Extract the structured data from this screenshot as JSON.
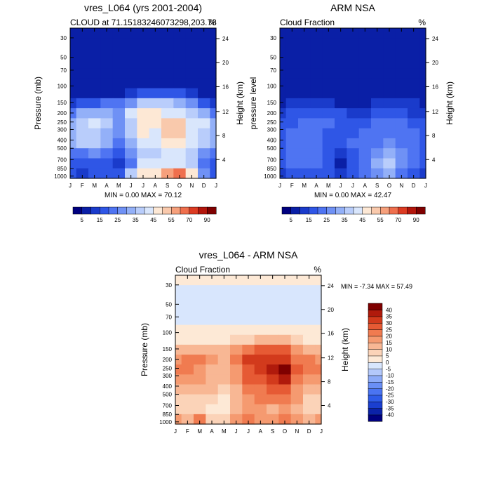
{
  "chart_data": [
    {
      "type": "heatmap",
      "title": "vres_L064 (yrs 2001-2004)",
      "subtitle_left": "CLOUD at 71.15183246073298,203.78",
      "subtitle_right": "%",
      "xlabel": "",
      "ylabel": "Pressure (mb)",
      "ylabel_right": "Height (km)",
      "x_ticks": [
        "J",
        "F",
        "M",
        "A",
        "M",
        "J",
        "J",
        "A",
        "S",
        "O",
        "N",
        "D",
        "J"
      ],
      "y_ticks_left": [
        "30",
        "50",
        "70",
        "100",
        "150",
        "200",
        "250",
        "300",
        "400",
        "500",
        "700",
        "850",
        "1000"
      ],
      "y_ticks_right": [
        "24",
        "20",
        "16",
        "12",
        "8",
        "4"
      ],
      "stats": "MIN =   0.00 MAX =  70.12",
      "colorbar": {
        "orientation": "horizontal",
        "labels": [
          "5",
          "15",
          "25",
          "35",
          "45",
          "55",
          "70",
          "90"
        ],
        "levels": [
          5,
          10,
          15,
          20,
          25,
          30,
          35,
          40,
          45,
          50,
          55,
          60,
          70,
          80,
          90
        ],
        "colors": [
          "#00007f",
          "#0a1fa6",
          "#1a3bcb",
          "#2f56e6",
          "#4f74f2",
          "#6f91f5",
          "#93b0f8",
          "#b9cdfb",
          "#d9e6fc",
          "#fde8d5",
          "#f9c9ac",
          "#f6a07c",
          "#ef6f4d",
          "#dc3b22",
          "#b3160c",
          "#7f0000"
        ]
      },
      "grid_rows": [
        [
          1,
          1,
          1,
          1,
          1,
          1,
          1,
          1,
          1,
          1,
          1,
          1,
          1
        ],
        [
          1,
          1,
          1,
          1,
          1,
          1,
          1,
          1,
          1,
          1,
          1,
          1,
          1
        ],
        [
          1,
          1,
          1,
          1,
          1,
          1,
          1,
          1,
          1,
          1,
          1,
          1,
          1
        ],
        [
          1,
          1,
          1,
          1,
          1,
          1,
          1,
          1,
          1,
          1,
          1,
          1,
          1
        ],
        [
          1,
          1,
          1,
          1,
          1,
          1,
          1,
          1,
          1,
          1,
          1,
          1,
          1
        ],
        [
          1,
          1,
          1,
          1,
          1,
          1,
          1,
          1,
          1,
          1,
          1,
          1,
          1
        ],
        [
          1,
          1,
          1,
          1,
          1,
          2,
          3,
          3,
          3,
          3,
          2,
          1,
          1
        ],
        [
          2,
          3,
          3,
          4,
          4,
          5,
          7,
          7,
          7,
          6,
          5,
          3,
          2
        ],
        [
          4,
          6,
          6,
          6,
          5,
          8,
          9,
          9,
          8,
          8,
          7,
          6,
          4
        ],
        [
          6,
          7,
          8,
          7,
          5,
          7,
          9,
          9,
          10,
          10,
          8,
          8,
          6
        ],
        [
          6,
          7,
          7,
          6,
          5,
          7,
          9,
          8,
          10,
          10,
          8,
          7,
          6
        ],
        [
          6,
          7,
          7,
          6,
          4,
          6,
          8,
          8,
          9,
          9,
          8,
          7,
          6
        ],
        [
          4,
          4,
          5,
          4,
          3,
          5,
          7,
          7,
          8,
          8,
          7,
          5,
          4
        ],
        [
          3,
          3,
          3,
          3,
          2,
          4,
          8,
          8,
          8,
          8,
          7,
          4,
          3
        ],
        [
          3,
          2,
          3,
          3,
          3,
          7,
          9,
          9,
          11,
          12,
          9,
          5,
          3
        ]
      ]
    },
    {
      "type": "heatmap",
      "title": "ARM NSA",
      "subtitle_left": "Cloud Fraction",
      "subtitle_right": "%",
      "xlabel": "",
      "ylabel": "pressure level",
      "ylabel_right": "Height (km)",
      "x_ticks": [
        "J",
        "F",
        "M",
        "A",
        "M",
        "J",
        "J",
        "A",
        "S",
        "O",
        "N",
        "D",
        "J"
      ],
      "y_ticks_left": [
        "30",
        "50",
        "70",
        "100",
        "150",
        "200",
        "250",
        "300",
        "400",
        "500",
        "700",
        "850",
        "1000"
      ],
      "y_ticks_right": [
        "24",
        "20",
        "16",
        "12",
        "8",
        "4"
      ],
      "stats": "MIN =   0.00 MAX =  42.47",
      "colorbar": {
        "orientation": "horizontal",
        "labels": [
          "5",
          "15",
          "25",
          "35",
          "45",
          "55",
          "70",
          "90"
        ],
        "levels": [
          5,
          10,
          15,
          20,
          25,
          30,
          35,
          40,
          45,
          50,
          55,
          60,
          70,
          80,
          90
        ],
        "colors": [
          "#00007f",
          "#0a1fa6",
          "#1a3bcb",
          "#2f56e6",
          "#4f74f2",
          "#6f91f5",
          "#93b0f8",
          "#b9cdfb",
          "#d9e6fc",
          "#fde8d5",
          "#f9c9ac",
          "#f6a07c",
          "#ef6f4d",
          "#dc3b22",
          "#b3160c",
          "#7f0000"
        ]
      },
      "grid_rows": [
        [
          1,
          1,
          1,
          1,
          1,
          1,
          1,
          1,
          1,
          1,
          1,
          1,
          1
        ],
        [
          1,
          1,
          1,
          1,
          1,
          1,
          1,
          1,
          1,
          1,
          1,
          1,
          1
        ],
        [
          1,
          1,
          1,
          1,
          1,
          1,
          1,
          1,
          1,
          1,
          1,
          1,
          1
        ],
        [
          1,
          1,
          1,
          1,
          1,
          1,
          1,
          1,
          1,
          1,
          1,
          1,
          1
        ],
        [
          1,
          1,
          1,
          1,
          1,
          1,
          1,
          1,
          1,
          1,
          1,
          1,
          1
        ],
        [
          1,
          1,
          1,
          1,
          1,
          1,
          1,
          1,
          1,
          1,
          1,
          1,
          1
        ],
        [
          1,
          1,
          1,
          1,
          1,
          1,
          1,
          1,
          1,
          1,
          1,
          1,
          1
        ],
        [
          1,
          2,
          2,
          2,
          2,
          1,
          1,
          1,
          2,
          2,
          2,
          2,
          1
        ],
        [
          2,
          3,
          3,
          3,
          3,
          3,
          2,
          2,
          3,
          3,
          3,
          2,
          2
        ],
        [
          3,
          3,
          4,
          4,
          4,
          3,
          3,
          3,
          4,
          4,
          4,
          3,
          3
        ],
        [
          3,
          4,
          4,
          4,
          3,
          3,
          3,
          4,
          4,
          4,
          4,
          4,
          3
        ],
        [
          3,
          4,
          4,
          4,
          3,
          3,
          4,
          4,
          4,
          5,
          4,
          4,
          3
        ],
        [
          3,
          4,
          4,
          4,
          3,
          2,
          3,
          4,
          5,
          6,
          5,
          4,
          3
        ],
        [
          3,
          4,
          4,
          4,
          3,
          1,
          3,
          4,
          6,
          7,
          5,
          4,
          3
        ],
        [
          2,
          3,
          3,
          3,
          3,
          2,
          3,
          4,
          5,
          6,
          4,
          3,
          2
        ]
      ]
    },
    {
      "type": "heatmap",
      "title": "vres_L064 - ARM NSA",
      "subtitle_left": "Cloud Fraction",
      "subtitle_right": "%",
      "xlabel": "",
      "ylabel": "Pressure (mb)",
      "ylabel_right": "Height (km)",
      "x_ticks": [
        "J",
        "F",
        "M",
        "A",
        "M",
        "J",
        "J",
        "A",
        "S",
        "O",
        "N",
        "D",
        "J"
      ],
      "y_ticks_left": [
        "30",
        "50",
        "70",
        "100",
        "150",
        "200",
        "250",
        "300",
        "400",
        "500",
        "700",
        "850",
        "1000"
      ],
      "y_ticks_right": [
        "24",
        "20",
        "16",
        "12",
        "8",
        "4"
      ],
      "stats": "MIN =  -7.34 MAX =  57.49",
      "colorbar": {
        "orientation": "vertical",
        "labels": [
          "40",
          "35",
          "30",
          "25",
          "20",
          "15",
          "10",
          "5",
          "0",
          "-5",
          "-10",
          "-15",
          "-20",
          "-25",
          "-30",
          "-35",
          "-40"
        ],
        "levels": [
          -40,
          -35,
          -30,
          -25,
          -20,
          -15,
          -10,
          -5,
          0,
          5,
          10,
          15,
          20,
          25,
          30,
          35,
          40
        ],
        "colors": [
          "#00007f",
          "#0b22a8",
          "#1b3fcf",
          "#2e5be8",
          "#4a74f2",
          "#6a8ff5",
          "#8dabf8",
          "#b3c8fb",
          "#d8e6fd",
          "#fde9d6",
          "#fbd3b8",
          "#f8b794",
          "#f59a70",
          "#f07b50",
          "#e65a34",
          "#d23a1c",
          "#b01a0c",
          "#7f0000"
        ]
      },
      "grid_rows": [
        [
          9,
          9,
          9,
          9,
          9,
          9,
          9,
          9,
          9,
          9,
          9,
          9,
          9
        ],
        [
          8,
          8,
          8,
          8,
          8,
          8,
          8,
          8,
          8,
          8,
          8,
          8,
          8
        ],
        [
          8,
          8,
          8,
          8,
          8,
          8,
          8,
          8,
          8,
          8,
          8,
          8,
          8
        ],
        [
          8,
          8,
          8,
          8,
          8,
          8,
          8,
          8,
          8,
          8,
          8,
          8,
          8
        ],
        [
          8,
          8,
          8,
          8,
          8,
          8,
          8,
          8,
          8,
          8,
          8,
          8,
          8
        ],
        [
          9,
          9,
          9,
          9,
          9,
          9,
          9,
          9,
          9,
          9,
          9,
          9,
          9
        ],
        [
          9,
          9,
          9,
          9,
          9,
          10,
          10,
          11,
          11,
          11,
          10,
          9,
          9
        ],
        [
          11,
          11,
          11,
          11,
          11,
          12,
          13,
          14,
          14,
          14,
          12,
          11,
          11
        ],
        [
          12,
          13,
          13,
          12,
          11,
          13,
          15,
          15,
          15,
          15,
          13,
          13,
          12
        ],
        [
          13,
          13,
          12,
          11,
          11,
          12,
          14,
          15,
          16,
          17,
          14,
          13,
          13
        ],
        [
          12,
          12,
          12,
          11,
          11,
          12,
          14,
          14,
          15,
          16,
          13,
          12,
          12
        ],
        [
          11,
          11,
          11,
          11,
          10,
          11,
          13,
          13,
          14,
          14,
          12,
          11,
          11
        ],
        [
          10,
          10,
          10,
          10,
          9,
          11,
          12,
          13,
          13,
          13,
          12,
          10,
          10
        ],
        [
          10,
          10,
          10,
          9,
          9,
          11,
          12,
          12,
          11,
          12,
          11,
          10,
          10
        ],
        [
          12,
          11,
          13,
          10,
          10,
          12,
          13,
          12,
          12,
          13,
          12,
          11,
          12
        ]
      ]
    }
  ]
}
